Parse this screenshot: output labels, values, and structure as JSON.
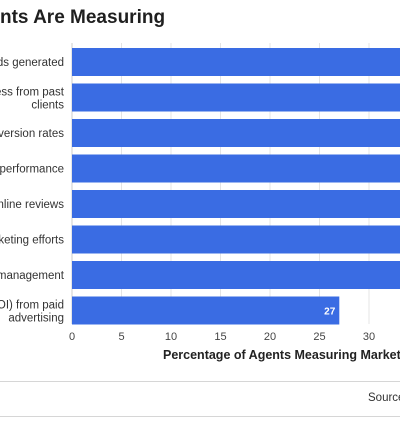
{
  "title": "nts Are Measuring",
  "source_text": "Source",
  "colors": {
    "bar": "#3a6ce3",
    "grid": "#e4e4e4",
    "axis": "#cccccc"
  },
  "chart_data": {
    "type": "bar",
    "orientation": "horizontal",
    "title": "nts Are Measuring",
    "xlabel": "Percentage of Agents Measuring Marketing",
    "ylabel": "",
    "xlim": [
      0,
      35
    ],
    "x_ticks": [
      0,
      5,
      10,
      15,
      20,
      25,
      30
    ],
    "grid": true,
    "categories": [
      [
        "ds generated"
      ],
      [
        "ess from past",
        "clients"
      ],
      [
        "version rates"
      ],
      [
        "performance"
      ],
      [
        "nline reviews"
      ],
      [
        "keting efforts"
      ],
      [
        "management"
      ],
      [
        "OI) from paid",
        "advertising"
      ]
    ],
    "values": [
      35,
      35,
      35,
      35,
      35,
      35,
      35,
      27
    ],
    "data_labels": [
      "",
      "",
      "",
      "",
      "",
      "",
      "",
      "27"
    ]
  }
}
